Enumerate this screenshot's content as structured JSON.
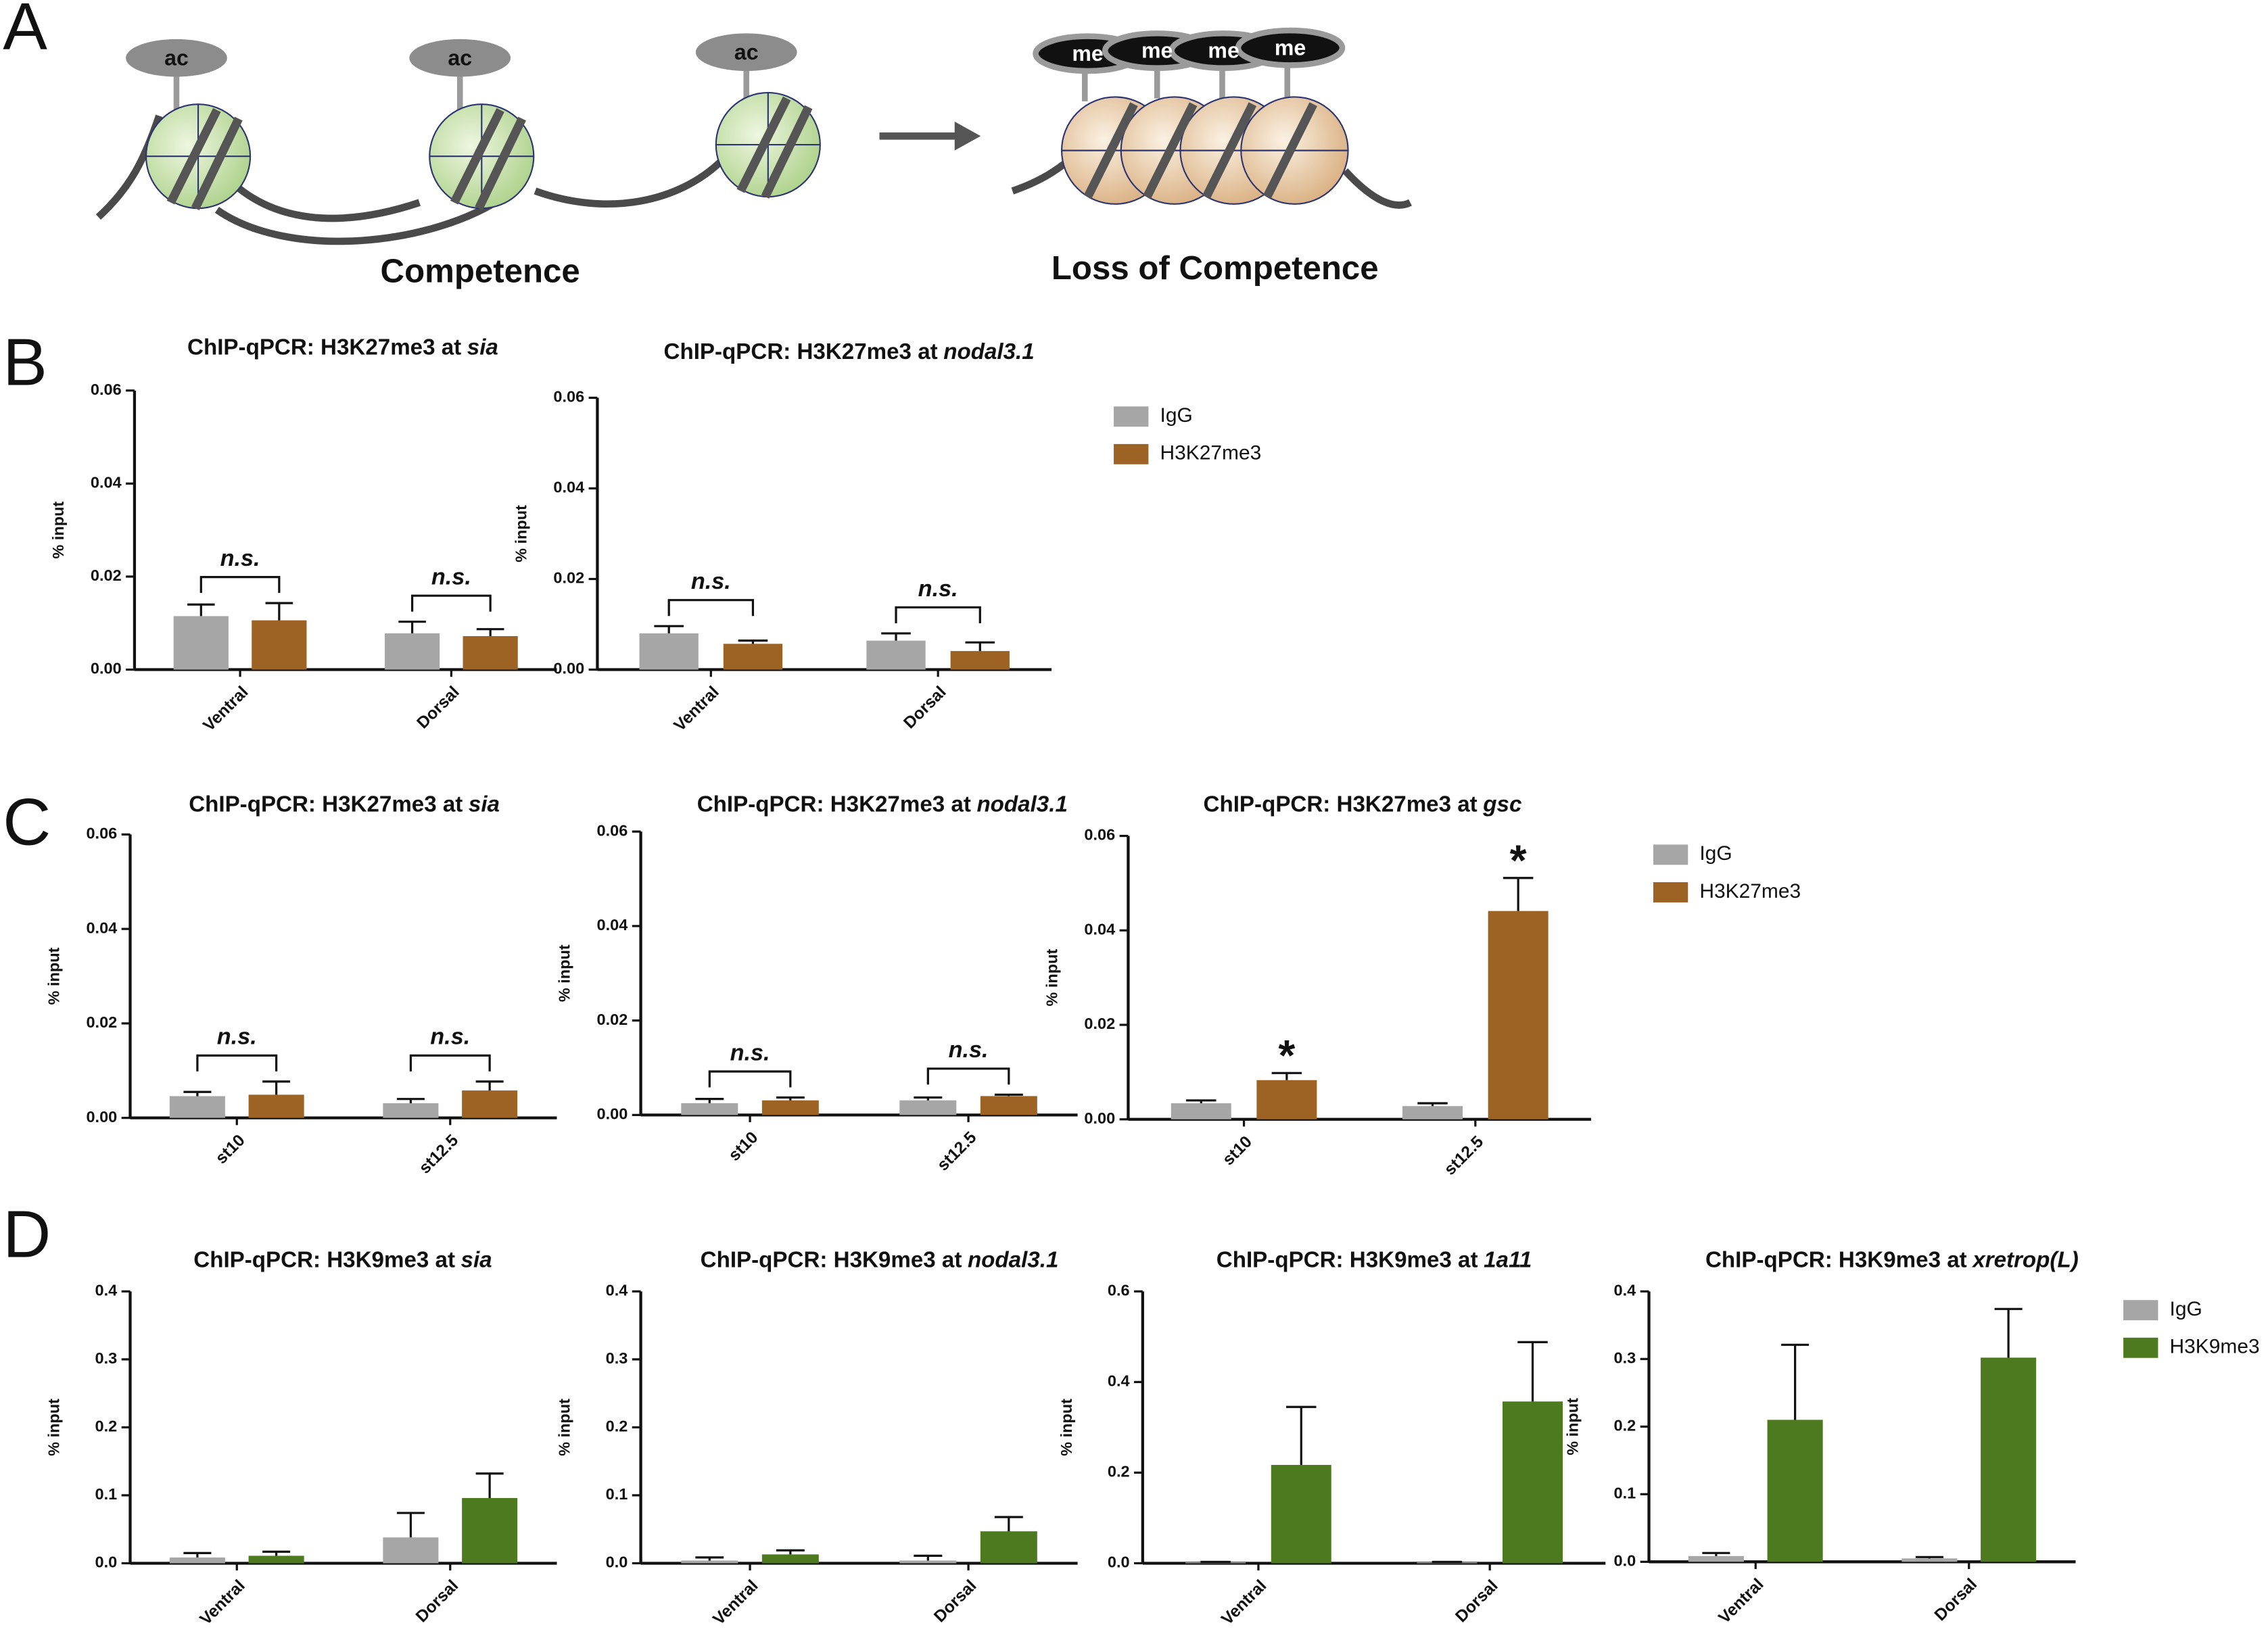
{
  "panel_labels": [
    "A",
    "B",
    "C",
    "D"
  ],
  "diagram": {
    "left_marks": [
      "ac",
      "ac",
      "ac"
    ],
    "right_marks": [
      "me",
      "me",
      "me",
      "me"
    ],
    "left_caption": "Competence",
    "right_caption": "Loss of Competence"
  },
  "chart_data": [
    {
      "type": "bar",
      "title": "ChIP-qPCR: H3K27me3 at",
      "title_italic": "sia",
      "ylabel": "% input",
      "categories": [
        "Ventral",
        "Dorsal"
      ],
      "ylim": [
        0,
        0.06
      ],
      "yticks": [
        {
          "value": 0,
          "label": "0.00"
        },
        {
          "value": 0.02,
          "label": "0.02"
        },
        {
          "value": 0.04,
          "label": "0.04"
        },
        {
          "value": 0.06,
          "label": "0.06"
        }
      ],
      "series": [
        {
          "name": "IgG",
          "color": "#a6a6a6",
          "values": [
            0.0115,
            0.0078
          ],
          "errors": [
            0.0025,
            0.0025
          ]
        },
        {
          "name": "H3K27me3",
          "color": "#9c6325",
          "values": [
            0.0106,
            0.0072
          ],
          "errors": [
            0.0037,
            0.0015
          ]
        }
      ],
      "annotations": [
        "n.s.",
        "n.s."
      ],
      "annotation_type": "bracket"
    },
    {
      "type": "bar",
      "title": "ChIP-qPCR: H3K27me3 at",
      "title_italic": "nodal3.1",
      "ylabel": "% input",
      "categories": [
        "Ventral",
        "Dorsal"
      ],
      "ylim": [
        0,
        0.06
      ],
      "yticks": [
        {
          "value": 0,
          "label": "0.00"
        },
        {
          "value": 0.02,
          "label": "0.02"
        },
        {
          "value": 0.04,
          "label": "0.04"
        },
        {
          "value": 0.06,
          "label": "0.06"
        }
      ],
      "series": [
        {
          "name": "IgG",
          "color": "#a6a6a6",
          "values": [
            0.008,
            0.0064
          ],
          "errors": [
            0.0016,
            0.0016
          ]
        },
        {
          "name": "H3K27me3",
          "color": "#9c6325",
          "values": [
            0.0057,
            0.0041
          ],
          "errors": [
            0.0007,
            0.0019
          ]
        }
      ],
      "annotations": [
        "n.s.",
        "n.s."
      ],
      "annotation_type": "bracket",
      "legend": "right"
    },
    {
      "type": "bar",
      "title": "ChIP-qPCR: H3K27me3 at",
      "title_italic": "sia",
      "ylabel": "% input",
      "categories": [
        "st10",
        "st12.5"
      ],
      "ylim": [
        0,
        0.06
      ],
      "yticks": [
        {
          "value": 0,
          "label": "0.00"
        },
        {
          "value": 0.02,
          "label": "0.02"
        },
        {
          "value": 0.04,
          "label": "0.04"
        },
        {
          "value": 0.06,
          "label": "0.06"
        }
      ],
      "series": [
        {
          "name": "IgG",
          "color": "#a6a6a6",
          "values": [
            0.0046,
            0.0031
          ],
          "errors": [
            0.0009,
            0.0009
          ]
        },
        {
          "name": "H3K27me3",
          "color": "#9c6325",
          "values": [
            0.0049,
            0.0058
          ],
          "errors": [
            0.0028,
            0.0019
          ]
        }
      ],
      "annotations": [
        "n.s.",
        "n.s."
      ],
      "annotation_type": "bracket"
    },
    {
      "type": "bar",
      "title": "ChIP-qPCR: H3K27me3 at",
      "title_italic": "nodal3.1",
      "ylabel": "% input",
      "categories": [
        "st10",
        "st12.5"
      ],
      "ylim": [
        0,
        0.06
      ],
      "yticks": [
        {
          "value": 0,
          "label": "0.00"
        },
        {
          "value": 0.02,
          "label": "0.02"
        },
        {
          "value": 0.04,
          "label": "0.04"
        },
        {
          "value": 0.06,
          "label": "0.06"
        }
      ],
      "series": [
        {
          "name": "IgG",
          "color": "#a6a6a6",
          "values": [
            0.0025,
            0.0031
          ],
          "errors": [
            0.0009,
            0.0006
          ]
        },
        {
          "name": "H3K27me3",
          "color": "#9c6325",
          "values": [
            0.0031,
            0.004
          ],
          "errors": [
            0.0006,
            0.0003
          ]
        }
      ],
      "annotations": [
        "n.s.",
        "n.s."
      ],
      "annotation_type": "bracket"
    },
    {
      "type": "bar",
      "title": "ChIP-qPCR: H3K27me3 at",
      "title_italic": "gsc",
      "ylabel": "% input",
      "categories": [
        "st10",
        "st12.5"
      ],
      "ylim": [
        0,
        0.06
      ],
      "yticks": [
        {
          "value": 0,
          "label": "0.00"
        },
        {
          "value": 0.02,
          "label": "0.02"
        },
        {
          "value": 0.04,
          "label": "0.04"
        },
        {
          "value": 0.06,
          "label": "0.06"
        }
      ],
      "series": [
        {
          "name": "IgG",
          "color": "#a6a6a6",
          "values": [
            0.0034,
            0.0028
          ],
          "errors": [
            0.0006,
            0.0006
          ]
        },
        {
          "name": "H3K27me3",
          "color": "#9c6325",
          "values": [
            0.0083,
            0.0441
          ],
          "errors": [
            0.0015,
            0.007
          ]
        }
      ],
      "annotations": [
        "*",
        "*"
      ],
      "annotation_type": "above-bar",
      "legend": "right"
    },
    {
      "type": "bar",
      "title": "ChIP-qPCR: H3K9me3 at",
      "title_italic": "sia",
      "ylabel": "% input",
      "categories": [
        "Ventral",
        "Dorsal"
      ],
      "ylim": [
        0,
        0.4
      ],
      "yticks": [
        {
          "value": 0,
          "label": "0.0"
        },
        0.1,
        0.2,
        0.3,
        0.4
      ],
      "series": [
        {
          "name": "IgG",
          "color": "#a6a6a6",
          "values": [
            0.0085,
            0.038
          ],
          "errors": [
            0.0065,
            0.036
          ]
        },
        {
          "name": "H3K9me3",
          "color": "#4e7a1f",
          "values": [
            0.011,
            0.096
          ],
          "errors": [
            0.006,
            0.036
          ]
        }
      ]
    },
    {
      "type": "bar",
      "title": "ChIP-qPCR: H3K9me3 at",
      "title_italic": "nodal3.1",
      "ylabel": "% input",
      "categories": [
        "Ventral",
        "Dorsal"
      ],
      "ylim": [
        0,
        0.4
      ],
      "yticks": [
        {
          "value": 0,
          "label": "0.0"
        },
        0.1,
        0.2,
        0.3,
        0.4
      ],
      "series": [
        {
          "name": "IgG",
          "color": "#a6a6a6",
          "values": [
            0.004,
            0.004
          ],
          "errors": [
            0.0045,
            0.007
          ]
        },
        {
          "name": "H3K9me3",
          "color": "#4e7a1f",
          "values": [
            0.013,
            0.047
          ],
          "errors": [
            0.006,
            0.021
          ]
        }
      ]
    },
    {
      "type": "bar",
      "title": "ChIP-qPCR: H3K9me3 at",
      "title_italic": "1a11",
      "ylabel": "% input",
      "categories": [
        "Ventral",
        "Dorsal"
      ],
      "ylim": [
        0,
        0.6
      ],
      "yticks": [
        {
          "value": 0,
          "label": "0.0"
        },
        0.2,
        0.4,
        0.6
      ],
      "series": [
        {
          "name": "IgG",
          "color": "#a6a6a6",
          "values": [
            0.002,
            0.002
          ],
          "errors": [
            0.001,
            0.001
          ]
        },
        {
          "name": "H3K9me3",
          "color": "#4e7a1f",
          "values": [
            0.217,
            0.357
          ],
          "errors": [
            0.128,
            0.131
          ]
        }
      ]
    },
    {
      "type": "bar",
      "title": "ChIP-qPCR: H3K9me3 at",
      "title_italic": "xretrop(L)",
      "ylabel": "% input",
      "categories": [
        "Ventral",
        "Dorsal"
      ],
      "ylim": [
        0,
        0.4
      ],
      "yticks": [
        {
          "value": 0,
          "label": "0.0"
        },
        0.1,
        0.2,
        0.3,
        0.4
      ],
      "series": [
        {
          "name": "IgG",
          "color": "#a6a6a6",
          "values": [
            0.0085,
            0.005
          ],
          "errors": [
            0.0045,
            0.002
          ]
        },
        {
          "name": "H3K9me3",
          "color": "#4e7a1f",
          "values": [
            0.21,
            0.302
          ],
          "errors": [
            0.111,
            0.072
          ]
        }
      ],
      "legend": "right"
    }
  ]
}
